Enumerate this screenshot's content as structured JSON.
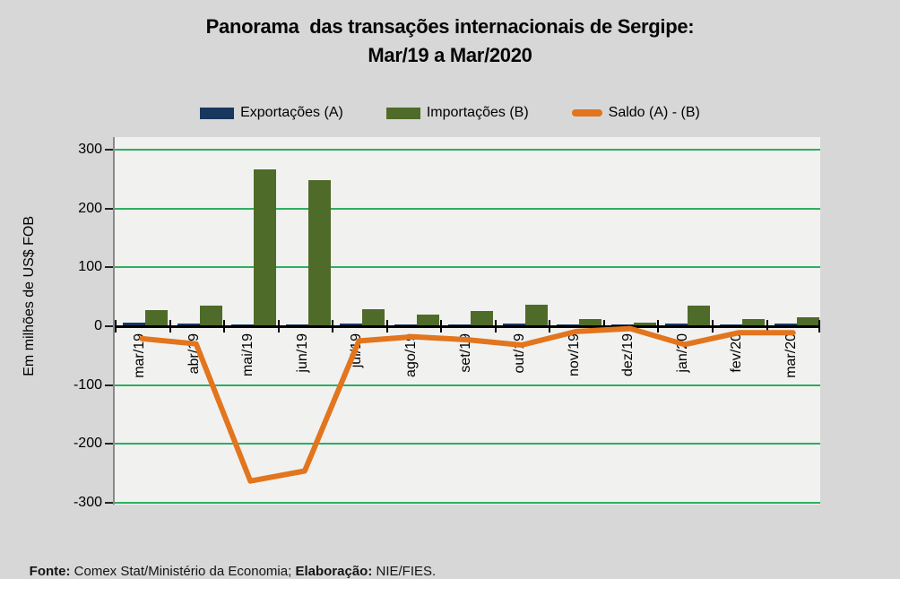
{
  "title": {
    "line1": "Panorama  das transações internacionais de Sergipe:",
    "line2": "Mar/19 a Mar/2020"
  },
  "footer": {
    "source_label": "Fonte: ",
    "source_text": "Comex Stat/Ministério da Economia; ",
    "elaboration_label": "Elaboração: ",
    "elaboration_text": "NIE/FIES."
  },
  "colors": {
    "canvas_background": "#d7d7d7",
    "plot_background": "#f1f1f0",
    "gridline": "#2bb05e",
    "axis": "#000000",
    "exportacoes": "#17375d",
    "importacoes": "#4f6b2a",
    "saldo": "#e2751d"
  },
  "chart_data": {
    "type": "bar",
    "title": "Panorama das transações internacionais de Sergipe: Mar/19 a Mar/2020",
    "categories": [
      "mar/19",
      "abr/19",
      "mai/19",
      "jun/19",
      "jul/19",
      "ago/19",
      "set/19",
      "out/19",
      "nov/19",
      "dez/19",
      "jan/20",
      "fev/20",
      "mar/20"
    ],
    "series": [
      {
        "name": "Exportações (A)",
        "type": "bar",
        "color": "#17375d",
        "values": [
          6,
          5,
          3,
          3,
          4,
          2,
          3,
          4,
          3,
          2,
          4,
          2,
          4
        ]
      },
      {
        "name": "Importações (B)",
        "type": "bar",
        "color": "#4f6b2a",
        "values": [
          27,
          35,
          266,
          249,
          29,
          20,
          26,
          36,
          12,
          6,
          35,
          13,
          15
        ]
      },
      {
        "name": "Saldo (A) - (B)",
        "type": "line",
        "color": "#e2751d",
        "values": [
          -21,
          -30,
          -263,
          -246,
          -25,
          -18,
          -23,
          -32,
          -9,
          -4,
          -31,
          -11,
          -11
        ]
      }
    ],
    "xlabel": "",
    "ylabel": "Em milhões de US$ FOB",
    "ylim": [
      -300,
      300
    ],
    "yticks": [
      300,
      200,
      100,
      0,
      -100,
      -200,
      -300
    ],
    "grid": true,
    "gridline_color": "#2bb05e",
    "legend_position": "top",
    "x_label_rotation": -90
  }
}
